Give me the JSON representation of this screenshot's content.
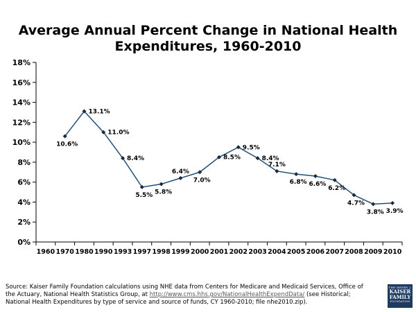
{
  "chart_data": {
    "type": "line",
    "title_line1": "Average Annual Percent Change in National Health",
    "title_line2": "Expenditures, 1960-2010",
    "categories": [
      "1960",
      "1970",
      "1980",
      "1990",
      "1993",
      "1997",
      "1998",
      "1999",
      "2000",
      "2001",
      "2002",
      "2003",
      "2004",
      "2005",
      "2006",
      "2007",
      "2008",
      "2009",
      "2010"
    ],
    "values": [
      null,
      10.6,
      13.1,
      11.0,
      8.4,
      5.5,
      5.8,
      6.4,
      7.0,
      8.5,
      9.5,
      8.4,
      7.1,
      6.8,
      6.6,
      6.2,
      4.7,
      3.8,
      3.9
    ],
    "data_labels": [
      "",
      "10.6%",
      "13.1%",
      "11.0%",
      "8.4%",
      "5.5%",
      "5.8%",
      "6.4%",
      "7.0%",
      "8.5%",
      "9.5%",
      "8.4%",
      "7.1%",
      "6.8%",
      "6.6%",
      "6.2%",
      "4.7%",
      "3.8%",
      "3.9%"
    ],
    "label_positions": [
      "",
      "below",
      "right",
      "right",
      "right",
      "below",
      "below",
      "above",
      "below",
      "right",
      "right",
      "right",
      "above",
      "below",
      "below",
      "below",
      "below",
      "below",
      "below"
    ],
    "y_ticks": [
      "0%",
      "2%",
      "4%",
      "6%",
      "8%",
      "10%",
      "12%",
      "14%",
      "16%",
      "18%"
    ],
    "ylim": [
      0,
      18
    ],
    "y_step": 2,
    "xlabel": "",
    "ylabel": "",
    "grid": false,
    "line_color": "#1f4e79"
  },
  "source": {
    "prefix": "Source: Kaiser Family Foundation calculations using NHE data from Centers for Medicare and Medicaid Services, Office of the Actuary, National Health Statistics Group, at ",
    "link": "http://www.cms.hhs.gov/NationalHealthExpendData/",
    "suffix": " (see Historical; National Health Expenditures by type of service and source of funds, CY 1960-2010; file nhe2010.zip)."
  },
  "logo": {
    "line1": "THE HENRY J.",
    "line2a": "KAISER",
    "line2b": "FAMILY",
    "line3": "FOUNDATION"
  }
}
